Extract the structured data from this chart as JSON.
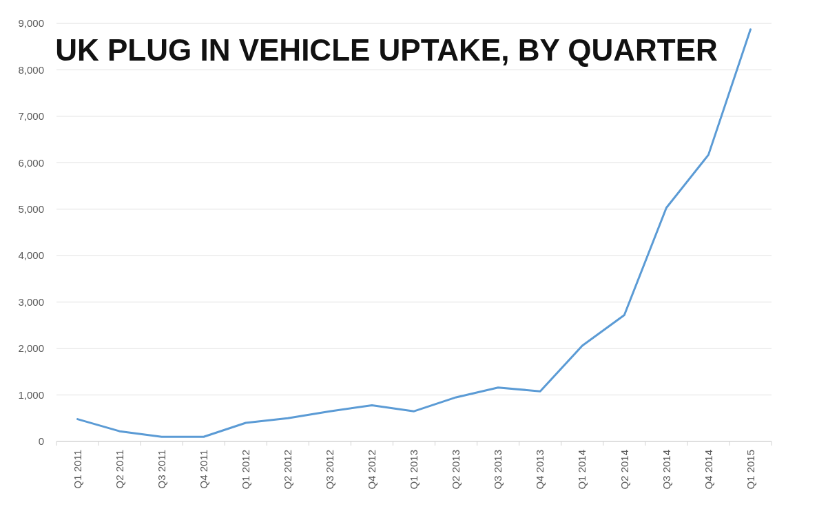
{
  "chart_data": {
    "type": "line",
    "title": "UK PLUG IN VEHICLE UPTAKE, BY QUARTER",
    "categories": [
      "Q1 2011",
      "Q2 2011",
      "Q3 2011",
      "Q4 2011",
      "Q1 2012",
      "Q2 2012",
      "Q3 2012",
      "Q4 2012",
      "Q1 2013",
      "Q2 2013",
      "Q3 2013",
      "Q4 2013",
      "Q1 2014",
      "Q2 2014",
      "Q3 2014",
      "Q4 2014",
      "Q1 2015"
    ],
    "series": [
      {
        "color": "#5b9bd5",
        "values": [
          480,
          220,
          100,
          100,
          400,
          500,
          650,
          780,
          650,
          950,
          1160,
          1080,
          2060,
          2720,
          5030,
          6170,
          8870
        ]
      }
    ],
    "ylim": [
      0,
      9000
    ],
    "yticks": [
      {
        "value": 0,
        "label": "0"
      },
      {
        "value": 1000,
        "label": "1,000"
      },
      {
        "value": 2000,
        "label": "2,000"
      },
      {
        "value": 3000,
        "label": "3,000"
      },
      {
        "value": 4000,
        "label": "4,000"
      },
      {
        "value": 5000,
        "label": "5,000"
      },
      {
        "value": 6000,
        "label": "6,000"
      },
      {
        "value": 7000,
        "label": "7,000"
      },
      {
        "value": 8000,
        "label": "8,000"
      },
      {
        "value": 9000,
        "label": "9,000"
      }
    ],
    "grid": "y",
    "marker": "none",
    "line_style": "solid"
  }
}
